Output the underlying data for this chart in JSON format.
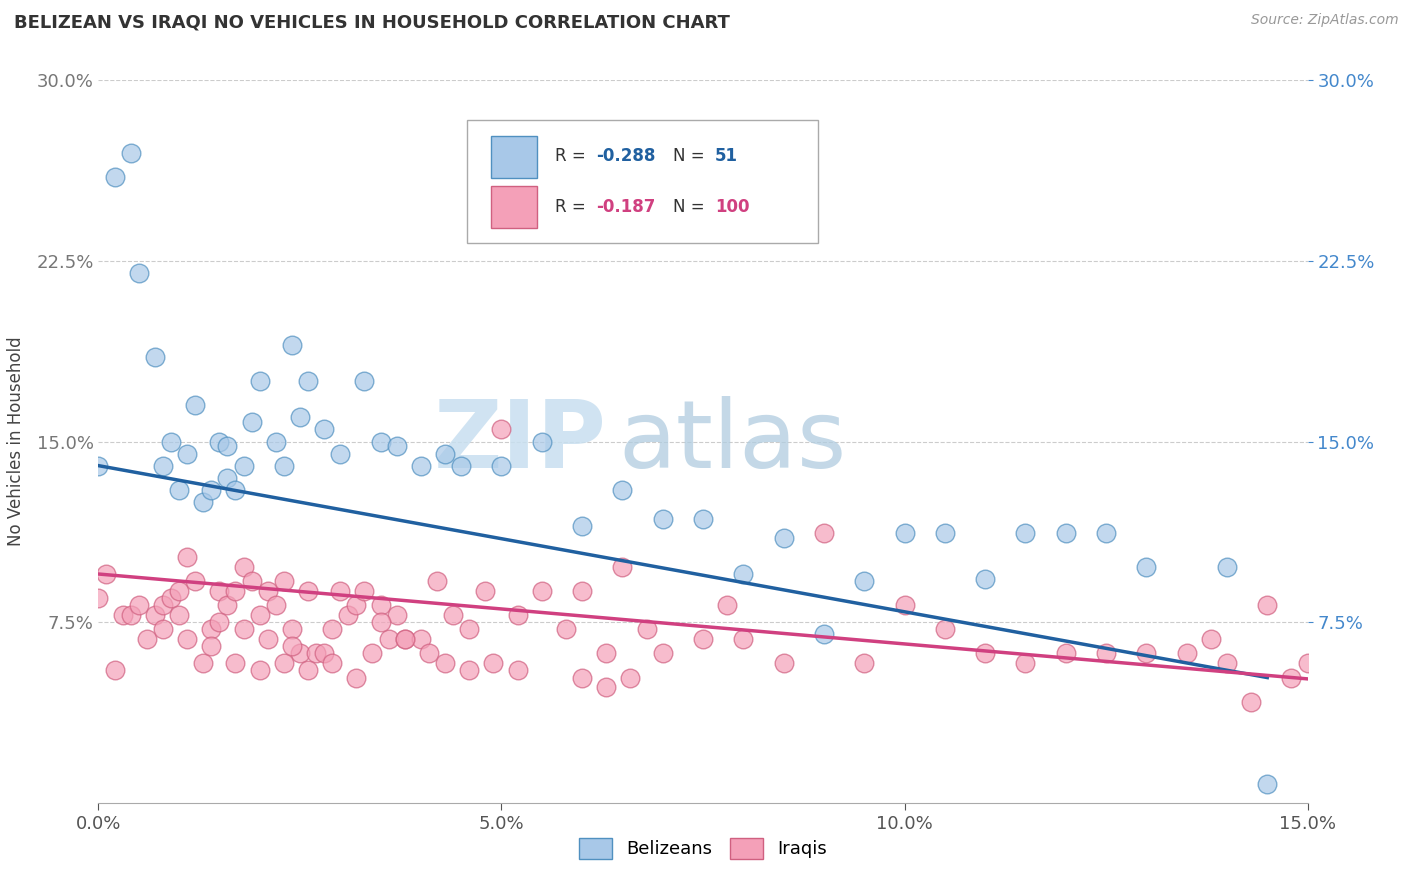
{
  "title": "BELIZEAN VS IRAQI NO VEHICLES IN HOUSEHOLD CORRELATION CHART",
  "source": "Source: ZipAtlas.com",
  "ylabel": "No Vehicles in Household",
  "xlim": [
    0.0,
    0.15
  ],
  "ylim": [
    0.0,
    0.3
  ],
  "blue_color": "#a8c8e8",
  "blue_edge_color": "#5090c0",
  "pink_color": "#f4a0b8",
  "pink_edge_color": "#d06080",
  "blue_line_color": "#2060a0",
  "pink_line_color": "#d04080",
  "right_tick_color": "#4488cc",
  "blue_R": -0.288,
  "blue_N": 51,
  "pink_R": -0.187,
  "pink_N": 100,
  "watermark_zip": "ZIP",
  "watermark_atlas": "atlas",
  "legend_label_blue": "Belizeans",
  "legend_label_pink": "Iraqis",
  "blue_scatter_x": [
    0.0,
    0.002,
    0.004,
    0.005,
    0.007,
    0.008,
    0.009,
    0.01,
    0.011,
    0.012,
    0.013,
    0.014,
    0.015,
    0.016,
    0.016,
    0.017,
    0.018,
    0.019,
    0.02,
    0.022,
    0.023,
    0.024,
    0.025,
    0.026,
    0.028,
    0.03,
    0.033,
    0.035,
    0.037,
    0.04,
    0.043,
    0.045,
    0.05,
    0.055,
    0.06,
    0.065,
    0.07,
    0.075,
    0.08,
    0.085,
    0.09,
    0.095,
    0.1,
    0.105,
    0.11,
    0.115,
    0.12,
    0.125,
    0.13,
    0.14,
    0.145
  ],
  "blue_scatter_y": [
    0.14,
    0.26,
    0.27,
    0.22,
    0.185,
    0.14,
    0.15,
    0.13,
    0.145,
    0.165,
    0.125,
    0.13,
    0.15,
    0.148,
    0.135,
    0.13,
    0.14,
    0.158,
    0.175,
    0.15,
    0.14,
    0.19,
    0.16,
    0.175,
    0.155,
    0.145,
    0.175,
    0.15,
    0.148,
    0.14,
    0.145,
    0.14,
    0.14,
    0.15,
    0.115,
    0.13,
    0.118,
    0.118,
    0.095,
    0.11,
    0.07,
    0.092,
    0.112,
    0.112,
    0.093,
    0.112,
    0.112,
    0.112,
    0.098,
    0.098,
    0.008
  ],
  "pink_scatter_x": [
    0.0,
    0.001,
    0.002,
    0.003,
    0.004,
    0.005,
    0.006,
    0.007,
    0.008,
    0.009,
    0.01,
    0.01,
    0.011,
    0.012,
    0.013,
    0.014,
    0.015,
    0.016,
    0.017,
    0.018,
    0.019,
    0.02,
    0.021,
    0.022,
    0.023,
    0.024,
    0.025,
    0.026,
    0.027,
    0.028,
    0.029,
    0.03,
    0.031,
    0.032,
    0.033,
    0.034,
    0.035,
    0.036,
    0.037,
    0.038,
    0.04,
    0.042,
    0.044,
    0.046,
    0.048,
    0.05,
    0.052,
    0.055,
    0.058,
    0.06,
    0.063,
    0.065,
    0.068,
    0.07,
    0.075,
    0.078,
    0.08,
    0.085,
    0.09,
    0.095,
    0.1,
    0.105,
    0.11,
    0.115,
    0.12,
    0.125,
    0.13,
    0.135,
    0.138,
    0.14,
    0.143,
    0.145,
    0.148,
    0.15,
    0.152,
    0.155,
    0.158,
    0.06,
    0.063,
    0.066,
    0.035,
    0.038,
    0.041,
    0.043,
    0.046,
    0.049,
    0.052,
    0.008,
    0.011,
    0.014,
    0.017,
    0.02,
    0.023,
    0.026,
    0.029,
    0.032,
    0.015,
    0.018,
    0.021,
    0.024
  ],
  "pink_scatter_y": [
    0.085,
    0.095,
    0.055,
    0.078,
    0.078,
    0.082,
    0.068,
    0.078,
    0.082,
    0.085,
    0.088,
    0.078,
    0.102,
    0.092,
    0.058,
    0.072,
    0.088,
    0.082,
    0.088,
    0.098,
    0.092,
    0.078,
    0.088,
    0.082,
    0.092,
    0.072,
    0.062,
    0.088,
    0.062,
    0.062,
    0.072,
    0.088,
    0.078,
    0.082,
    0.088,
    0.062,
    0.082,
    0.068,
    0.078,
    0.068,
    0.068,
    0.092,
    0.078,
    0.072,
    0.088,
    0.155,
    0.078,
    0.088,
    0.072,
    0.088,
    0.062,
    0.098,
    0.072,
    0.062,
    0.068,
    0.082,
    0.068,
    0.058,
    0.112,
    0.058,
    0.082,
    0.072,
    0.062,
    0.058,
    0.062,
    0.062,
    0.062,
    0.062,
    0.068,
    0.058,
    0.042,
    0.082,
    0.052,
    0.058,
    0.052,
    0.052,
    0.048,
    0.052,
    0.048,
    0.052,
    0.075,
    0.068,
    0.062,
    0.058,
    0.055,
    0.058,
    0.055,
    0.072,
    0.068,
    0.065,
    0.058,
    0.055,
    0.058,
    0.055,
    0.058,
    0.052,
    0.075,
    0.072,
    0.068,
    0.065
  ]
}
